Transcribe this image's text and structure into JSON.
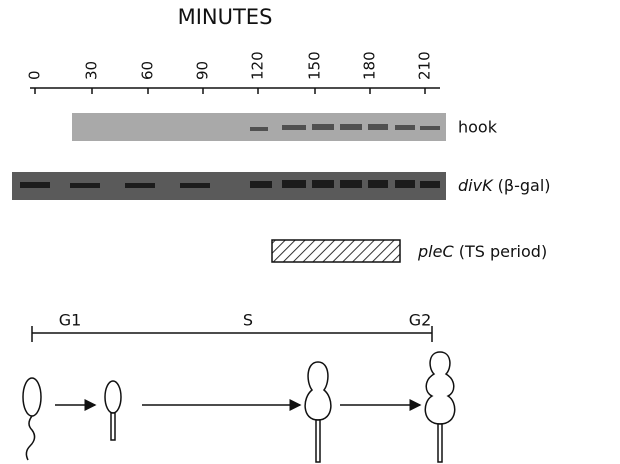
{
  "header": {
    "title": "MINUTES"
  },
  "time_points": [
    "0",
    "30",
    "60",
    "90",
    "120",
    "150",
    "180",
    "210"
  ],
  "rows": [
    {
      "label": "hook"
    },
    {
      "label": "divK",
      "note": "(β-gal)"
    },
    {
      "label": "pleC",
      "note": "(TS period)"
    }
  ],
  "phases": [
    "G1",
    "S",
    "G2"
  ]
}
